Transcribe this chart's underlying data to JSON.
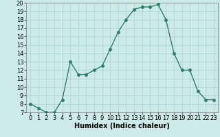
{
  "x": [
    0,
    1,
    2,
    3,
    4,
    5,
    6,
    7,
    8,
    9,
    10,
    11,
    12,
    13,
    14,
    15,
    16,
    17,
    18,
    19,
    20,
    21,
    22,
    23
  ],
  "y": [
    8,
    7.5,
    7,
    7,
    8.5,
    13,
    11.5,
    11.5,
    12,
    12.5,
    14.5,
    16.5,
    18,
    19.2,
    19.5,
    19.5,
    19.8,
    18,
    14,
    12,
    12,
    9.5,
    8.5,
    8.5
  ],
  "line_color": "#2e7d6e",
  "marker_color": "#2e7d6e",
  "bg_color": "#cceaea",
  "grid_color": "#aad0d0",
  "xlabel": "Humidex (Indice chaleur)",
  "ylim": [
    7,
    20
  ],
  "xlim": [
    -0.5,
    23.5
  ],
  "yticks": [
    7,
    8,
    9,
    10,
    11,
    12,
    13,
    14,
    15,
    16,
    17,
    18,
    19,
    20
  ],
  "xticks": [
    0,
    1,
    2,
    3,
    4,
    5,
    6,
    7,
    8,
    9,
    10,
    11,
    12,
    13,
    14,
    15,
    16,
    17,
    18,
    19,
    20,
    21,
    22,
    23
  ],
  "xlabel_fontsize": 7,
  "tick_fontsize": 6,
  "line_width": 1.0,
  "marker_size": 2.5
}
